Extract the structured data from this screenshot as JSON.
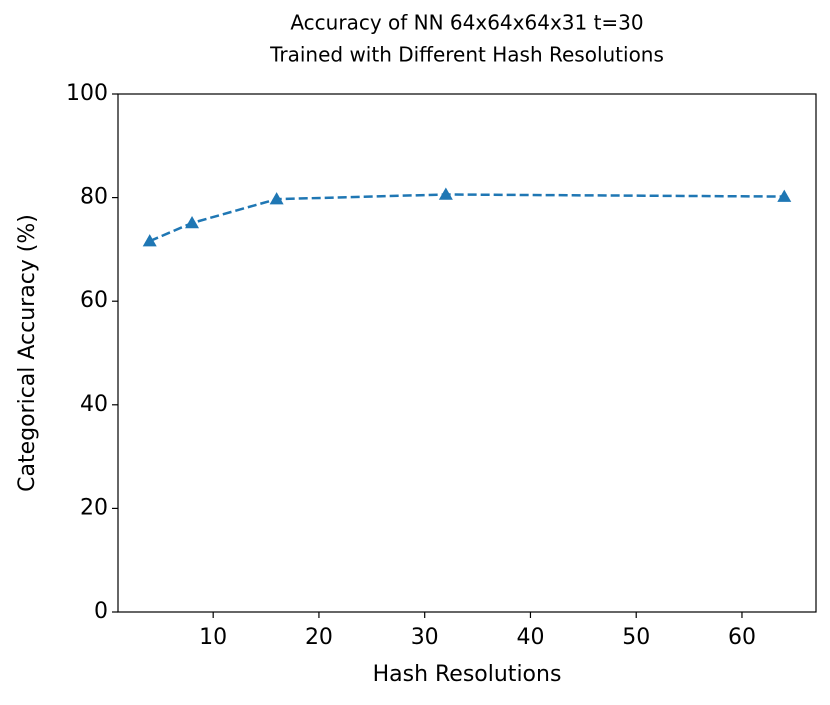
{
  "chart_data": {
    "type": "line",
    "title": [
      "Accuracy of NN 64x64x64x31 t=30",
      "Trained with Different Hash Resolutions"
    ],
    "xlabel": "Hash Resolutions",
    "ylabel": "Categorical Accuracy (%)",
    "x": [
      4,
      8,
      16,
      32,
      64
    ],
    "series": [
      {
        "color": "#1f77b4",
        "values": [
          71.6,
          75.1,
          79.7,
          80.6,
          80.2
        ]
      }
    ],
    "xlim": [
      1,
      67
    ],
    "xticks": [
      10,
      20,
      30,
      40,
      50,
      60
    ],
    "ylim": [
      0,
      100
    ],
    "yticks": [
      0,
      20,
      40,
      60,
      80,
      100
    ],
    "line_style": "dashed",
    "marker": "triangle"
  }
}
